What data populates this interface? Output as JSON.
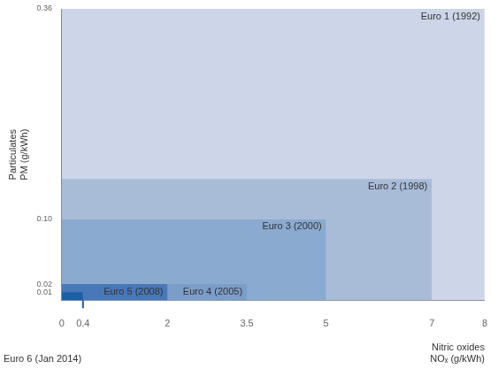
{
  "chart_data": {
    "type": "rectangle",
    "xlabel": [
      "Nitric oxides",
      "NOₓ (g/kWh)"
    ],
    "ylabel": [
      "Particulates",
      "PM (g/kWh)"
    ],
    "series": [
      {
        "name": "Euro 1 (1992)",
        "color": "#cdd5e8",
        "x": 8.0,
        "y": 0.36
      },
      {
        "name": "Euro 2 (1998)",
        "color": "#a8bcd8",
        "x": 7.0,
        "y": 0.15
      },
      {
        "name": "Euro 3 (2000)",
        "color": "#8aaacf",
        "x": 5.0,
        "y": 0.1
      },
      {
        "name": "Euro 4 (2005)",
        "color": "#7b9ec8",
        "x": 3.5,
        "y": 0.02
      },
      {
        "name": "Euro 5 (2008)",
        "color": "#4878b8",
        "x": 2.0,
        "y": 0.02
      }
    ],
    "highlight": {
      "name": "Euro 6 (Jan 2014)",
      "color": "#1a5fa8",
      "x": 0.4,
      "y": 0.01
    },
    "xlim": [
      0,
      8
    ],
    "ylim": [
      0,
      0.36
    ],
    "xticks": [
      0,
      0.4,
      2,
      3.5,
      5,
      7,
      8
    ],
    "yticks": [
      0.01,
      0.02,
      {
        "value": 0.1,
        "label": "0.10"
      },
      0.36
    ],
    "grid": false
  }
}
